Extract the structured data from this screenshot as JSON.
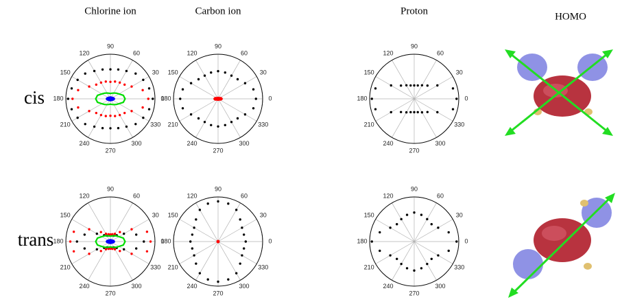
{
  "column_titles": [
    "Chlorine ion",
    "Carbon ion",
    "Proton",
    "HOMO"
  ],
  "row_labels": [
    "cis",
    "trans"
  ],
  "chart_data": [
    {
      "type": "polar",
      "theta": [
        0,
        15,
        30,
        45,
        60,
        75,
        90,
        105,
        120,
        135,
        150,
        165,
        180,
        195,
        210,
        225,
        240,
        255,
        270,
        285,
        300,
        315,
        330,
        345
      ],
      "thetaticks": [
        0,
        30,
        60,
        90,
        120,
        150,
        180,
        210,
        240,
        270,
        300,
        330
      ],
      "rlim": [
        0,
        1
      ],
      "series": [
        {
          "color": "#000000",
          "style": "dots",
          "r": [
            0.95,
            0.9,
            0.85,
            0.8,
            0.72,
            0.68,
            0.66,
            0.68,
            0.72,
            0.8,
            0.85,
            0.9,
            0.95,
            0.9,
            0.85,
            0.8,
            0.72,
            0.68,
            0.66,
            0.68,
            0.72,
            0.8,
            0.85,
            0.9
          ]
        },
        {
          "color": "#ff0000",
          "style": "dots",
          "r": [
            0.85,
            0.75,
            0.55,
            0.45,
            0.42,
            0.4,
            0.38,
            0.4,
            0.42,
            0.45,
            0.55,
            0.75,
            0.85,
            0.75,
            0.55,
            0.45,
            0.42,
            0.4,
            0.38,
            0.4,
            0.42,
            0.45,
            0.55,
            0.75
          ]
        },
        {
          "color": "#00dd00",
          "style": "line",
          "r": [
            0.33,
            0.3,
            0.22,
            0.18,
            0.15,
            0.13,
            0.12,
            0.13,
            0.15,
            0.18,
            0.22,
            0.3,
            0.33,
            0.3,
            0.22,
            0.18,
            0.15,
            0.13,
            0.12,
            0.13,
            0.15,
            0.18,
            0.22,
            0.3
          ]
        },
        {
          "color": "#0000ff",
          "style": "area",
          "r": [
            0.1,
            0.09,
            0.07,
            0.06,
            0.05,
            0.05,
            0.05,
            0.05,
            0.05,
            0.06,
            0.07,
            0.09,
            0.1,
            0.09,
            0.07,
            0.06,
            0.05,
            0.05,
            0.05,
            0.05,
            0.05,
            0.06,
            0.07,
            0.09
          ]
        }
      ]
    },
    {
      "type": "polar",
      "theta": [
        0,
        15,
        30,
        45,
        60,
        75,
        90,
        105,
        120,
        135,
        150,
        165,
        180,
        195,
        210,
        225,
        240,
        255,
        270,
        285,
        300,
        315,
        330,
        345
      ],
      "thetaticks": [
        0,
        30,
        60,
        90,
        120,
        150,
        180,
        210,
        240,
        270,
        300,
        330
      ],
      "rlim": [
        0,
        1
      ],
      "series": [
        {
          "color": "#000000",
          "style": "dots",
          "r": [
            0.85,
            0.82,
            0.7,
            0.62,
            0.6,
            0.61,
            0.62,
            0.61,
            0.6,
            0.62,
            0.7,
            0.82,
            0.85,
            0.82,
            0.7,
            0.62,
            0.6,
            0.61,
            0.62,
            0.61,
            0.6,
            0.62,
            0.7,
            0.82
          ]
        },
        {
          "color": "#ff0000",
          "style": "area",
          "r": [
            0.1,
            0.09,
            0.07,
            0.05,
            0.04,
            0.04,
            0.04,
            0.04,
            0.04,
            0.05,
            0.07,
            0.09,
            0.1,
            0.09,
            0.07,
            0.05,
            0.04,
            0.04,
            0.04,
            0.04,
            0.04,
            0.05,
            0.07,
            0.09
          ]
        }
      ]
    },
    {
      "type": "polar",
      "theta": [
        0,
        15,
        30,
        45,
        60,
        75,
        90,
        105,
        120,
        135,
        150,
        165,
        180,
        195,
        210,
        225,
        240,
        255,
        270,
        285,
        300,
        315,
        330,
        345
      ],
      "thetaticks": [
        0,
        30,
        60,
        90,
        120,
        150,
        180,
        210,
        240,
        270,
        300,
        330
      ],
      "rlim": [
        0,
        1
      ],
      "series": [
        {
          "color": "#000000",
          "style": "dots",
          "r": [
            0.95,
            0.9,
            0.6,
            0.42,
            0.35,
            0.31,
            0.3,
            0.31,
            0.35,
            0.42,
            0.6,
            0.9,
            0.95,
            0.9,
            0.6,
            0.42,
            0.35,
            0.31,
            0.3,
            0.31,
            0.35,
            0.42,
            0.6,
            0.9
          ]
        }
      ]
    },
    {
      "type": "polar",
      "theta": [
        0,
        15,
        30,
        45,
        60,
        75,
        90,
        105,
        120,
        135,
        150,
        165,
        180,
        195,
        210,
        225,
        240,
        255,
        270,
        285,
        300,
        315,
        330,
        345
      ],
      "thetaticks": [
        0,
        30,
        60,
        90,
        120,
        150,
        180,
        210,
        240,
        270,
        300,
        330
      ],
      "rlim": [
        0,
        1
      ],
      "series": [
        {
          "color": "#000000",
          "style": "dots",
          "r": [
            0.75,
            0.6,
            0.35,
            0.2,
            0.15,
            0.14,
            0.14,
            0.14,
            0.15,
            0.2,
            0.35,
            0.6,
            0.75,
            0.6,
            0.35,
            0.2,
            0.15,
            0.14,
            0.14,
            0.14,
            0.15,
            0.2,
            0.35,
            0.6
          ]
        },
        {
          "color": "#ff0000",
          "style": "dots",
          "r": [
            0.9,
            0.85,
            0.55,
            0.3,
            0.2,
            0.17,
            0.16,
            0.17,
            0.2,
            0.3,
            0.55,
            0.85,
            0.9,
            0.85,
            0.55,
            0.3,
            0.2,
            0.17,
            0.16,
            0.17,
            0.2,
            0.3,
            0.55,
            0.85
          ]
        },
        {
          "color": "#00dd00",
          "style": "line",
          "r": [
            0.33,
            0.3,
            0.22,
            0.18,
            0.15,
            0.13,
            0.12,
            0.13,
            0.15,
            0.18,
            0.22,
            0.3,
            0.33,
            0.3,
            0.22,
            0.18,
            0.15,
            0.13,
            0.12,
            0.13,
            0.15,
            0.18,
            0.22,
            0.3
          ]
        },
        {
          "color": "#0000ff",
          "style": "area",
          "r": [
            0.1,
            0.09,
            0.07,
            0.06,
            0.05,
            0.05,
            0.05,
            0.05,
            0.05,
            0.06,
            0.07,
            0.09,
            0.1,
            0.09,
            0.07,
            0.06,
            0.05,
            0.05,
            0.05,
            0.05,
            0.05,
            0.06,
            0.07,
            0.09
          ]
        }
      ]
    },
    {
      "type": "polar",
      "theta": [
        0,
        15,
        30,
        45,
        60,
        75,
        90,
        105,
        120,
        135,
        150,
        165,
        180,
        195,
        210,
        225,
        240,
        255,
        270,
        285,
        300,
        315,
        330,
        345
      ],
      "thetaticks": [
        0,
        30,
        60,
        90,
        120,
        150,
        180,
        210,
        240,
        270,
        300,
        330
      ],
      "rlim": [
        0,
        1
      ],
      "series": [
        {
          "color": "#000000",
          "style": "dots",
          "r": [
            0.62,
            0.6,
            0.62,
            0.7,
            0.82,
            0.88,
            0.9,
            0.88,
            0.82,
            0.7,
            0.62,
            0.6,
            0.62,
            0.6,
            0.62,
            0.7,
            0.82,
            0.88,
            0.9,
            0.88,
            0.82,
            0.7,
            0.62,
            0.6
          ]
        },
        {
          "color": "#ff0000",
          "style": "area",
          "r": [
            0.03,
            0.03,
            0.03,
            0.03,
            0.03,
            0.03,
            0.03,
            0.03,
            0.03,
            0.03,
            0.03,
            0.03,
            0.03,
            0.03,
            0.03,
            0.03,
            0.03,
            0.03,
            0.03,
            0.03,
            0.03,
            0.03,
            0.03,
            0.03
          ]
        }
      ]
    },
    {
      "type": "polar",
      "theta": [
        0,
        15,
        30,
        45,
        60,
        75,
        90,
        105,
        120,
        135,
        150,
        165,
        180,
        195,
        210,
        225,
        240,
        255,
        270,
        285,
        300,
        315,
        330,
        345
      ],
      "thetaticks": [
        0,
        30,
        60,
        90,
        120,
        150,
        180,
        210,
        240,
        270,
        300,
        330
      ],
      "rlim": [
        0,
        1
      ],
      "series": [
        {
          "color": "#000000",
          "style": "dots",
          "r": [
            0.95,
            0.8,
            0.62,
            0.55,
            0.58,
            0.62,
            0.65,
            0.62,
            0.58,
            0.55,
            0.62,
            0.8,
            0.95,
            0.8,
            0.62,
            0.55,
            0.58,
            0.62,
            0.65,
            0.62,
            0.58,
            0.55,
            0.62,
            0.8
          ]
        }
      ]
    }
  ]
}
